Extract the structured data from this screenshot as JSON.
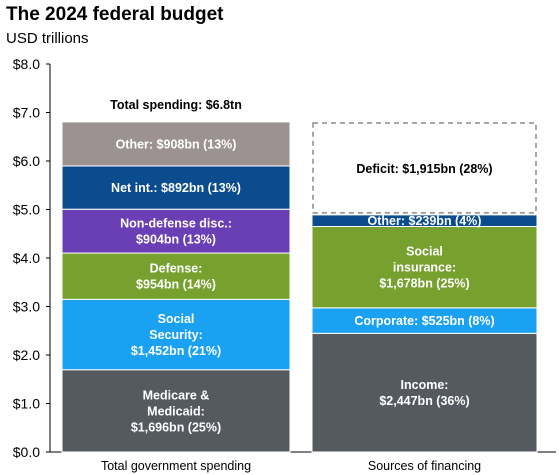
{
  "chart_data": {
    "type": "bar",
    "stacked": true,
    "title": "The 2024 federal budget",
    "subtitle": "USD trillions",
    "ylim": [
      0,
      8
    ],
    "yticks": [
      "$0.0",
      "$1.0",
      "$2.0",
      "$3.0",
      "$4.0",
      "$5.0",
      "$6.0",
      "$7.0",
      "$8.0"
    ],
    "grid": false,
    "categories": [
      "Total government spending",
      "Sources of financing"
    ],
    "bars": [
      {
        "category": "Total government spending",
        "total_label": "Total spending: $6.8tn",
        "segments": [
          {
            "lines": [
              "Medicare &",
              "Medicaid:",
              "$1,696bn (25%)"
            ],
            "value": 1.696,
            "color": "#555a60"
          },
          {
            "lines": [
              "Social",
              "Security:",
              "$1,452bn (21%)"
            ],
            "value": 1.452,
            "color": "#1aa1f2"
          },
          {
            "lines": [
              "Defense:",
              "$954bn (14%)"
            ],
            "value": 0.954,
            "color": "#76a12f"
          },
          {
            "lines": [
              "Non-defense disc.:",
              "$904bn (13%)"
            ],
            "value": 0.904,
            "color": "#6a3fb5"
          },
          {
            "lines": [
              "Net int.: $892bn (13%)"
            ],
            "value": 0.892,
            "color": "#0b4c8e"
          },
          {
            "lines": [
              "Other: $908bn (13%)"
            ],
            "value": 0.908,
            "color": "#9c9291"
          }
        ]
      },
      {
        "category": "Sources of financing",
        "segments": [
          {
            "lines": [
              "Income:",
              "$2,447bn (36%)"
            ],
            "value": 2.447,
            "color": "#555a60"
          },
          {
            "lines": [
              "Corporate: $525bn (8%)"
            ],
            "value": 0.525,
            "color": "#1aa1f2"
          },
          {
            "lines": [
              "Social",
              "insurance:",
              "$1,678bn (25%)"
            ],
            "value": 1.678,
            "color": "#76a12f"
          },
          {
            "lines": [
              "Other: $239bn (4%)"
            ],
            "value": 0.239,
            "color": "#0b4c8e"
          },
          {
            "lines": [
              "Deficit: $1,915bn (28%)"
            ],
            "value": 1.915,
            "color": "#ffffff",
            "outline": "dashed"
          }
        ]
      }
    ]
  }
}
